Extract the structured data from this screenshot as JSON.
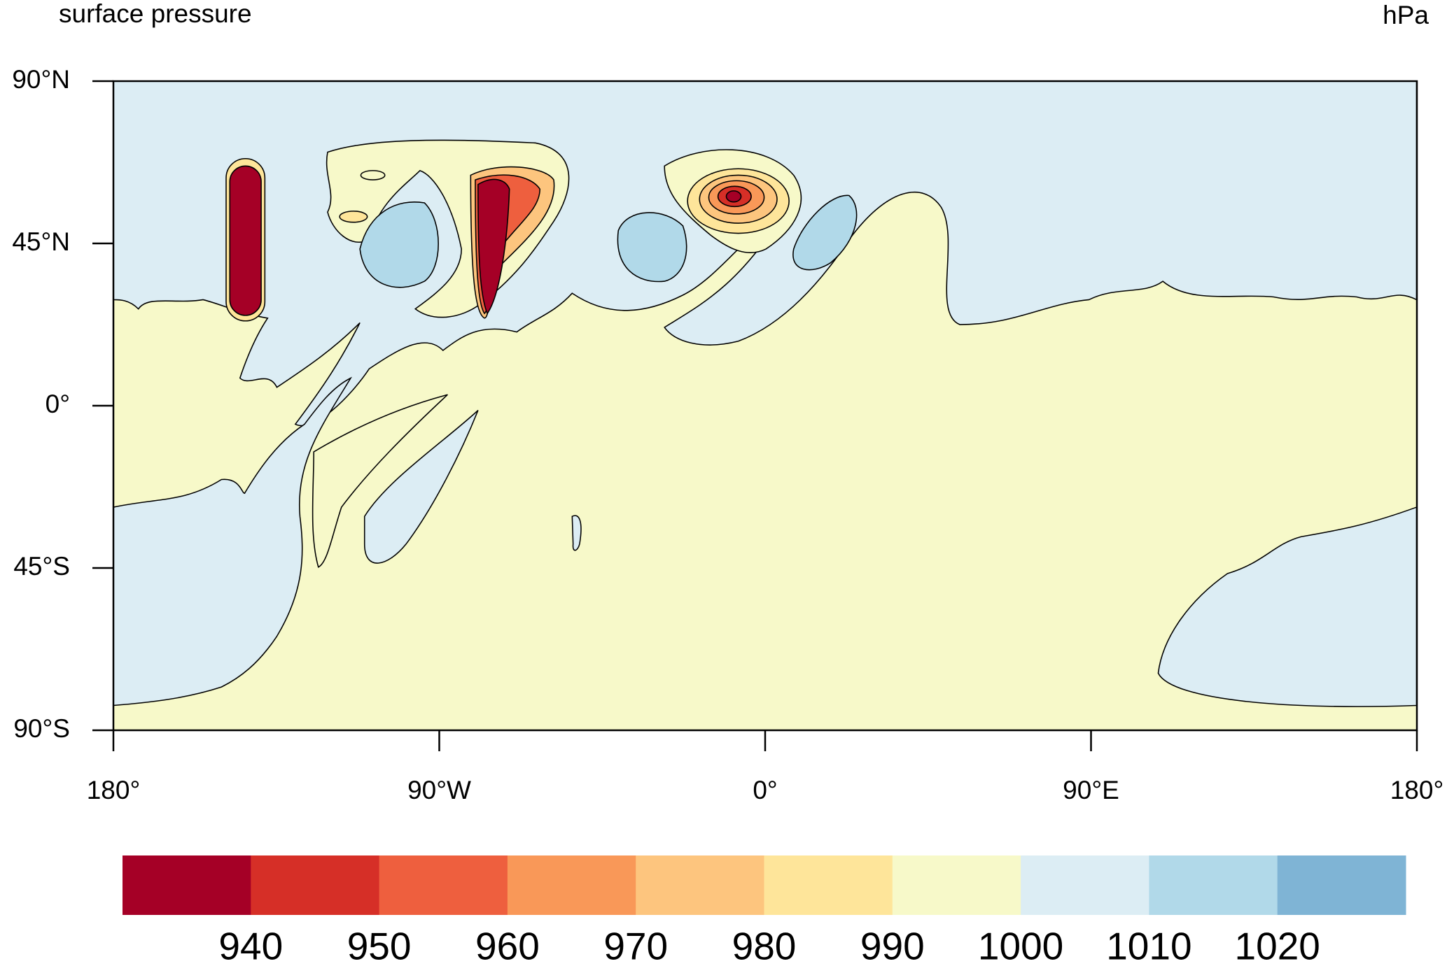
{
  "chart_data": {
    "type": "contour",
    "title": "surface pressure",
    "units": "hPa",
    "xlim": [
      -180,
      180
    ],
    "ylim": [
      -90,
      90
    ],
    "xticks": [
      {
        "value": -180,
        "label": "180°"
      },
      {
        "value": -90,
        "label": "90°W"
      },
      {
        "value": 0,
        "label": "0°"
      },
      {
        "value": 90,
        "label": "90°E"
      },
      {
        "value": 180,
        "label": "180°"
      }
    ],
    "yticks": [
      {
        "value": 90,
        "label": "90°N"
      },
      {
        "value": 45,
        "label": "45°N"
      },
      {
        "value": 0,
        "label": "0°"
      },
      {
        "value": -45,
        "label": "45°S"
      },
      {
        "value": -90,
        "label": "90°S"
      }
    ],
    "colorbar": {
      "levels": [
        940,
        950,
        960,
        970,
        980,
        990,
        1000,
        1010,
        1020
      ],
      "colors": [
        "#a50026",
        "#d62f27",
        "#ee5f3e",
        "#f99858",
        "#fdc57e",
        "#fee59a",
        "#f7f9c9",
        "#dcedf4",
        "#b1d9e9",
        "#7fb4d5"
      ]
    }
  }
}
